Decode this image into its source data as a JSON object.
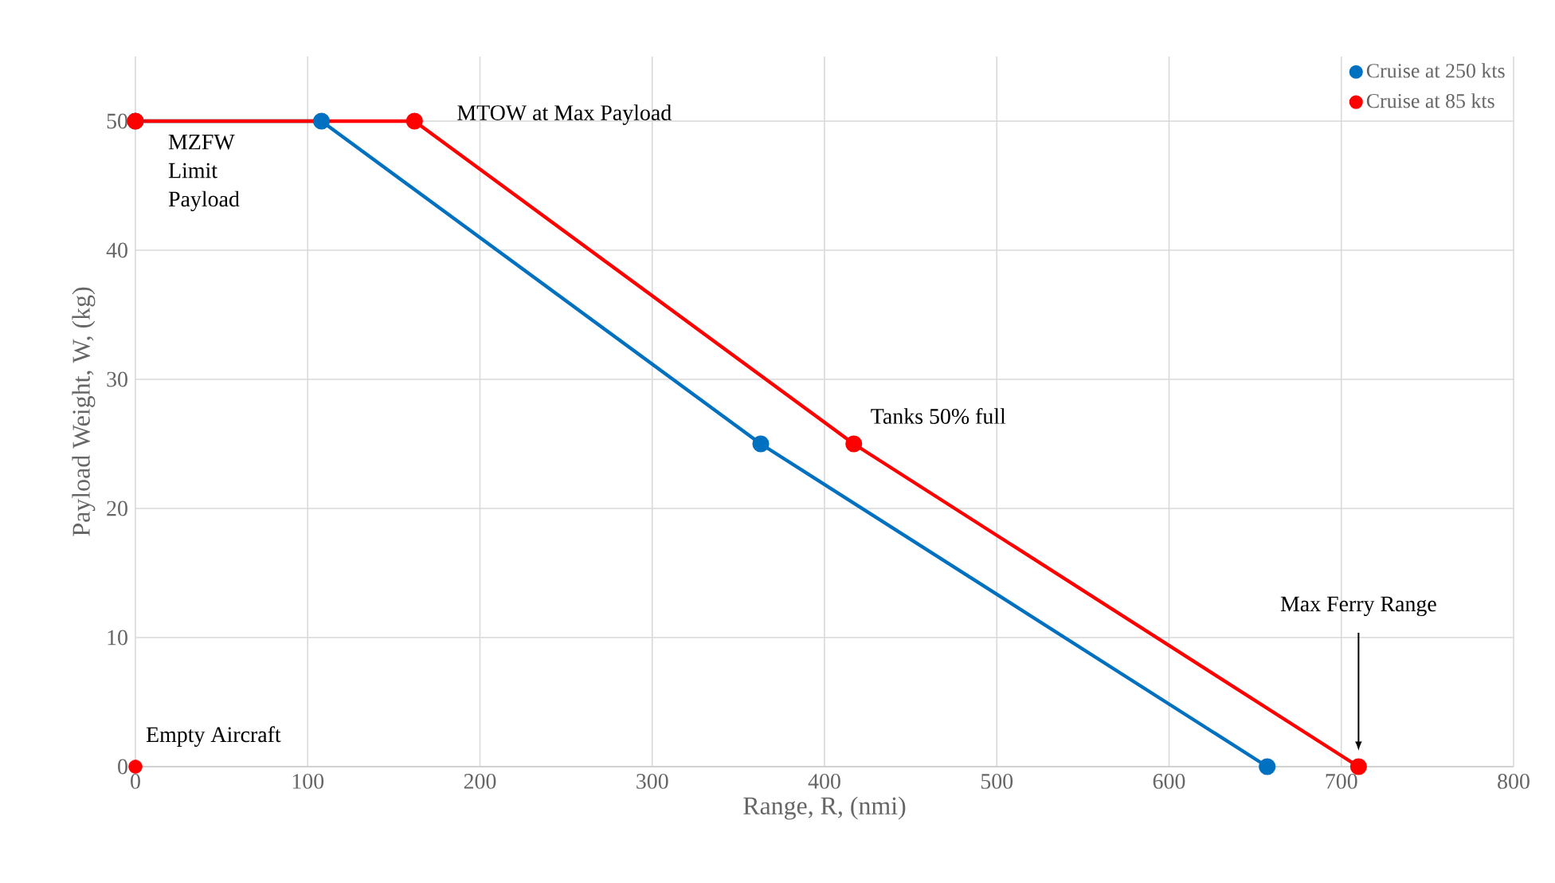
{
  "chart_data": {
    "type": "line",
    "xlabel": "Range, R, (nmi)",
    "ylabel": "Payload Weight, W, (kg)",
    "xlim": [
      0,
      800
    ],
    "ylim": [
      0,
      55
    ],
    "xticks": [
      0,
      100,
      200,
      300,
      400,
      500,
      600,
      700,
      800
    ],
    "yticks": [
      0,
      10,
      20,
      30,
      40,
      50
    ],
    "grid": true,
    "legend": "top right",
    "marker": "circle",
    "line_style": "solid",
    "series": [
      {
        "name": "Cruise at 250 kts",
        "color": "#0070c0",
        "x": [
          0,
          108,
          363,
          657
        ],
        "values": [
          50,
          50,
          25,
          0
        ]
      },
      {
        "name": "Cruise at 85 kts",
        "color": "#ff0000",
        "x": [
          0,
          162,
          417,
          710
        ],
        "values": [
          50,
          50,
          25,
          0
        ]
      },
      {
        "type": "scatter",
        "color": "#ff0000",
        "x": [
          0
        ],
        "values": [
          0
        ]
      }
    ],
    "annotations": [
      {
        "text": "MZFW Limit Payload",
        "x": 0,
        "y": 50
      },
      {
        "text": "MTOW at Max Payload",
        "x": 162,
        "y": 50
      },
      {
        "text": "Tanks 50% full",
        "x": 417,
        "y": 25
      },
      "Max Ferry Range",
      {
        "text": "Empty Aircraft",
        "x": 0,
        "y": 0
      }
    ]
  }
}
